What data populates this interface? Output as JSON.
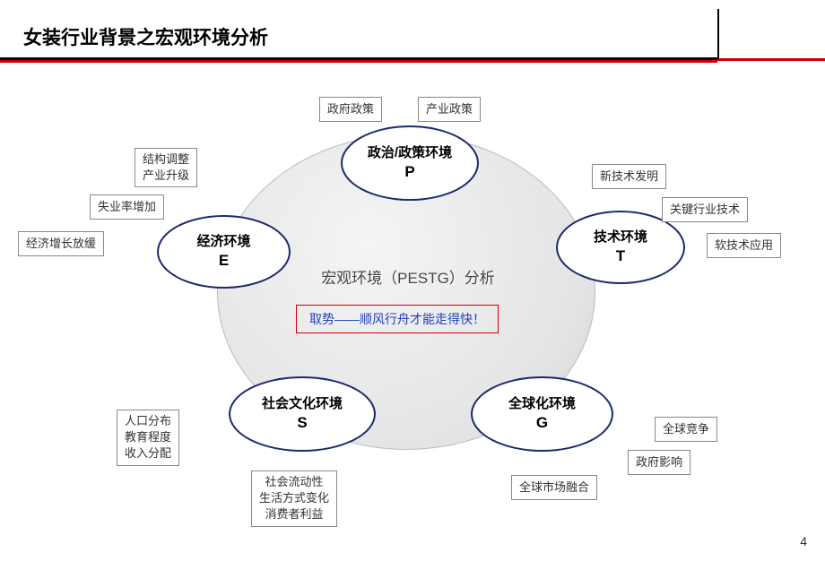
{
  "slide": {
    "title": "女装行业背景之宏观环境分析",
    "title_fontsize": 21,
    "page_number": "4",
    "colors": {
      "title_rule_black": "#000000",
      "title_rule_red": "#d00000",
      "ellipse_border": "#1a2a6b",
      "quote_border": "#d00000",
      "quote_text": "#2040c0",
      "box_border": "#888888",
      "bg_circle_fill": "#e4e4e4",
      "background": "#ffffff"
    }
  },
  "center": {
    "title": "宏观环境（PESTG）分析",
    "quote": "取势——顺风行舟才能走得快！"
  },
  "nodes": {
    "p": {
      "label1": "政治/政策环境",
      "label2": "P"
    },
    "e": {
      "label1": "经济环境",
      "label2": "E"
    },
    "t": {
      "label1": "技术环境",
      "label2": "T"
    },
    "s": {
      "label1": "社会文化环境",
      "label2": "S"
    },
    "g": {
      "label1": "全球化环境",
      "label2": "G"
    }
  },
  "boxes": {
    "p1": "政府政策",
    "p2": "产业政策",
    "e1": "结构调整\n产业升级",
    "e2": "失业率增加",
    "e3": "经济增长放缓",
    "t1": "新技术发明",
    "t2": "关键行业技术",
    "t3": "软技术应用",
    "s1": "人口分布\n教育程度\n收入分配",
    "s2": "社会流动性\n生活方式变化\n消费者利益",
    "g1": "全球竞争",
    "g2": "政府影响",
    "g3": "全球市场融合"
  }
}
